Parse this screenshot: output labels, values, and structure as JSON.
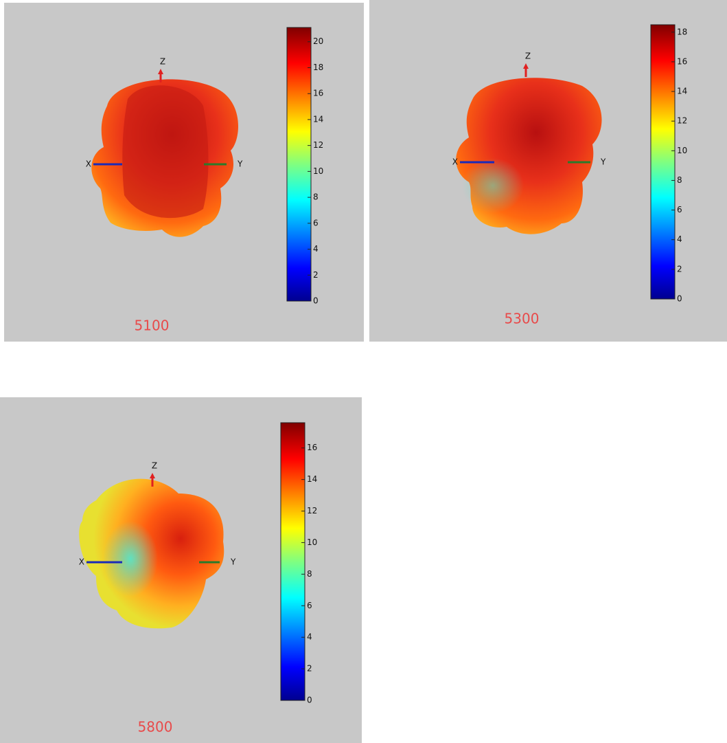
{
  "chart_data": [
    {
      "type": "pattern3d",
      "title": "5100",
      "axes": [
        "X",
        "Y",
        "Z"
      ],
      "clim": [
        0,
        21.1
      ],
      "cticks": [
        0,
        2,
        4,
        6,
        8,
        10,
        12,
        14,
        16,
        18,
        20
      ]
    },
    {
      "type": "pattern3d",
      "title": "5300",
      "axes": [
        "X",
        "Y",
        "Z"
      ],
      "clim": [
        0,
        18.5
      ],
      "cticks": [
        0,
        2,
        4,
        6,
        8,
        10,
        12,
        14,
        16,
        18
      ]
    },
    {
      "type": "pattern3d",
      "title": "5800",
      "axes": [
        "X",
        "Y",
        "Z"
      ],
      "clim": [
        0,
        17.6
      ],
      "cticks": [
        0,
        2,
        4,
        6,
        8,
        10,
        12,
        14,
        16
      ]
    }
  ]
}
